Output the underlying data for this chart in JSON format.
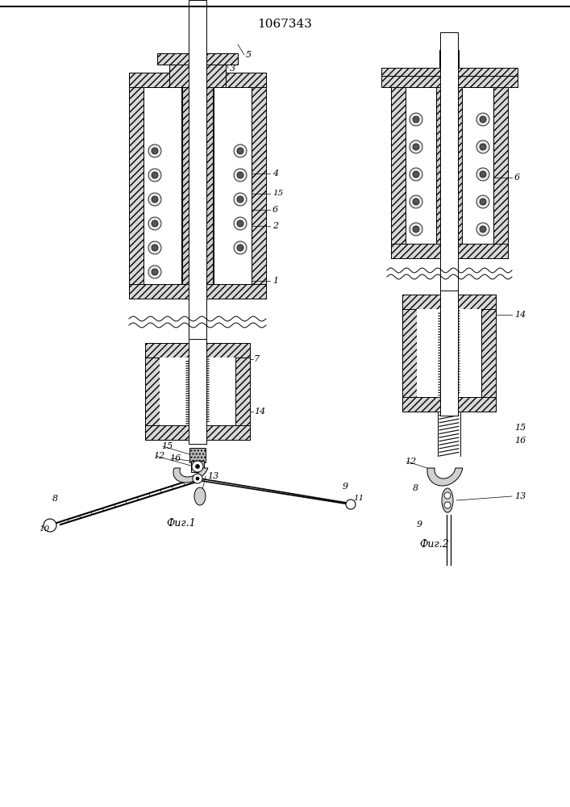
{
  "title": "1067343",
  "fig1_label": "Фиг.1",
  "fig2_label": "Фиг.2",
  "bg_color": "#ffffff"
}
